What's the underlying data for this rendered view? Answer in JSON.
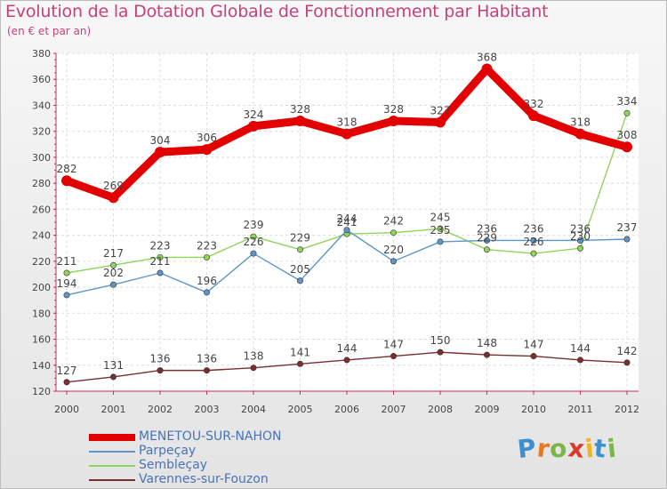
{
  "title": "Evolution de la Dotation Globale de Fonctionnement par Habitant",
  "subtitle": "(en € et par an)",
  "logo": {
    "letters": [
      "P",
      "r",
      "o",
      "x",
      "i",
      "t",
      "i"
    ],
    "colors": [
      "#3e8fd0",
      "#e8771f",
      "#7ab648",
      "#d93b2b",
      "#f2b51d",
      "#3e8fd0",
      "#7ab648"
    ]
  },
  "chart_data": {
    "type": "line",
    "title": "Evolution de la Dotation Globale de Fonctionnement par Habitant",
    "subtitle": "(en € et par an)",
    "xlabel": "",
    "ylabel": "",
    "categories": [
      "2000",
      "2001",
      "2002",
      "2003",
      "2004",
      "2005",
      "2006",
      "2007",
      "2008",
      "2009",
      "2010",
      "2011",
      "2012"
    ],
    "ylim": [
      120,
      380
    ],
    "yticks": [
      120,
      140,
      160,
      180,
      200,
      220,
      240,
      260,
      280,
      300,
      320,
      340,
      360,
      380
    ],
    "grid": true,
    "legend_position": "bottom-left",
    "series": [
      {
        "name": "MENETOU-SUR-NAHON",
        "color": "#e30000",
        "values": [
          282,
          269,
          304,
          306,
          324,
          328,
          318,
          328,
          327,
          368,
          332,
          318,
          308
        ]
      },
      {
        "name": "Parpeçay",
        "color": "#5e96c8",
        "values": [
          194,
          202,
          211,
          196,
          226,
          205,
          244,
          220,
          235,
          236,
          236,
          236,
          237
        ]
      },
      {
        "name": "Sembleçay",
        "color": "#90d45c",
        "values": [
          211,
          217,
          223,
          223,
          239,
          229,
          241,
          242,
          245,
          229,
          226,
          230,
          334
        ]
      },
      {
        "name": "Varennes-sur-Fouzon",
        "color": "#7a2e2e",
        "values": [
          127,
          131,
          136,
          136,
          138,
          141,
          144,
          147,
          150,
          148,
          147,
          144,
          142
        ]
      }
    ]
  }
}
